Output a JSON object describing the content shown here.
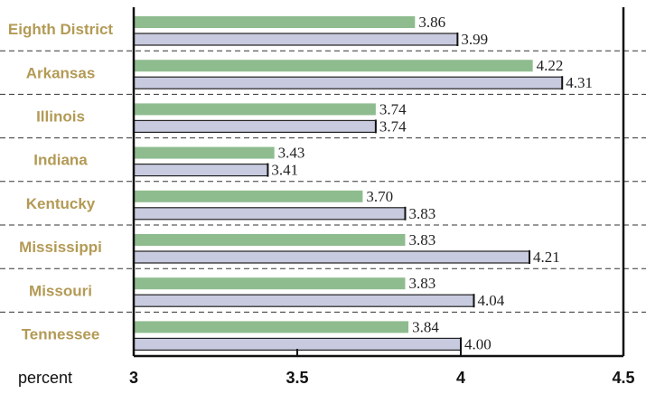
{
  "chart_data": {
    "type": "bar",
    "orientation": "horizontal",
    "categories": [
      "Eighth District",
      "Arkansas",
      "Illinois",
      "Indiana",
      "Kentucky",
      "Mississippi",
      "Missouri",
      "Tennessee"
    ],
    "series": [
      {
        "values": [
          3.86,
          4.22,
          3.74,
          3.43,
          3.7,
          3.83,
          3.83,
          3.84
        ],
        "color": "#8fbc8f"
      },
      {
        "values": [
          3.99,
          4.31,
          3.74,
          3.41,
          3.83,
          4.21,
          4.04,
          4.0
        ],
        "color": "#c8cadf"
      }
    ],
    "value_labels": [
      [
        "3.86",
        "4.22",
        "3.74",
        "3.43",
        "3.70",
        "3.83",
        "3.83",
        "3.84"
      ],
      [
        "3.99",
        "4.31",
        "3.74",
        "3.41",
        "3.83",
        "4.21",
        "4.04",
        "4.00"
      ]
    ],
    "xlim": [
      3,
      4.5
    ],
    "ticks": [
      3,
      3.5,
      4,
      4.5
    ],
    "tick_labels": [
      "3",
      "3.5",
      "4",
      "4.5"
    ],
    "unit_label": "percent",
    "category_label_color": "#b39a55",
    "separator_style": "dashed",
    "grid": false
  }
}
